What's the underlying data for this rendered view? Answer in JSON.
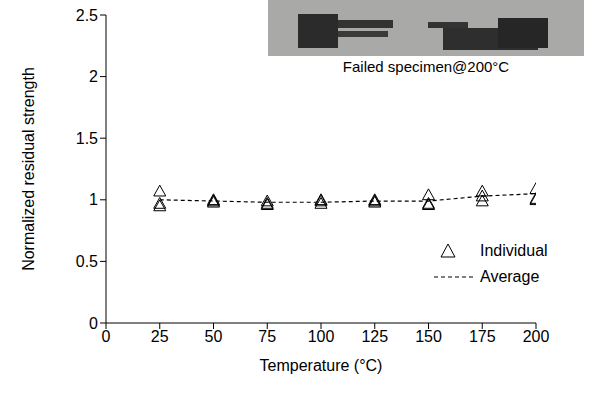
{
  "chart_data": {
    "type": "scatter",
    "x_label": "Temperature (°C)",
    "y_label": "Normalized residual strength",
    "annotation": "Failed specimen@200°C",
    "xlim": [
      0,
      200
    ],
    "xticks": [
      0,
      25,
      50,
      75,
      100,
      125,
      150,
      175,
      200
    ],
    "ylim": [
      0,
      2.5
    ],
    "yticks": [
      0,
      0.5,
      1,
      1.5,
      2,
      2.5
    ],
    "grid": false,
    "legend": "lower right",
    "series": [
      {
        "name": "Individual",
        "type": "scatter",
        "marker": "triangle",
        "color": "#000000",
        "x": [
          25,
          25,
          25,
          50,
          50,
          50,
          75,
          75,
          75,
          100,
          100,
          100,
          125,
          125,
          125,
          150,
          150,
          150,
          175,
          175,
          175,
          200,
          200,
          200
        ],
        "values": [
          1.07,
          0.95,
          0.97,
          1.0,
          0.98,
          0.99,
          0.99,
          0.96,
          0.97,
          0.97,
          0.99,
          1.0,
          1.0,
          0.98,
          0.99,
          1.04,
          0.97,
          0.96,
          1.07,
          0.99,
          1.03,
          1.09,
          1.0,
          1.01
        ]
      },
      {
        "name": "Average",
        "type": "line",
        "line_style": "dashed",
        "color": "#000000",
        "x": [
          25,
          50,
          75,
          100,
          125,
          150,
          175,
          200
        ],
        "values": [
          1.0,
          0.99,
          0.98,
          0.98,
          0.99,
          0.99,
          1.03,
          1.05
        ]
      }
    ]
  }
}
